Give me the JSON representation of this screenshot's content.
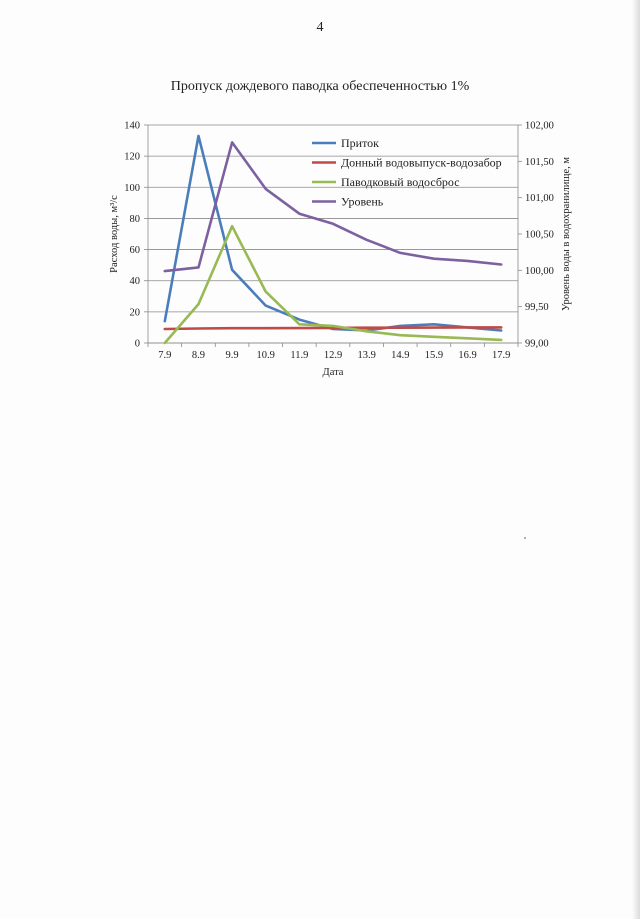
{
  "page": {
    "number": "4"
  },
  "chart_data": {
    "type": "line",
    "title": "Пропуск дождевого паводка обеспеченностью 1%",
    "xlabel": "Дата",
    "ylabel": "Расход воды, м³/с",
    "ylabel_right": "Уровень воды в водохранилище, м",
    "categories": [
      "7.9",
      "8.9",
      "9.9",
      "10.9",
      "11.9",
      "12.9",
      "13.9",
      "14.9",
      "15.9",
      "16.9",
      "17.9"
    ],
    "ylim": [
      0,
      140
    ],
    "y_ticks": [
      "0",
      "20",
      "40",
      "60",
      "80",
      "100",
      "120",
      "140"
    ],
    "ylim_right": [
      99.0,
      102.0
    ],
    "y_ticks_right": [
      "99,00",
      "99,50",
      "100,00",
      "100,50",
      "101,00",
      "101,50",
      "102,00"
    ],
    "grid": true,
    "legend_position": "top-center",
    "series": [
      {
        "name": "Приток",
        "axis": "left",
        "color": "#4a7ebb",
        "values": [
          14,
          133,
          47,
          24,
          15,
          9,
          8,
          11,
          12,
          10,
          8
        ]
      },
      {
        "name": "Донный водовыпуск-водозабор",
        "axis": "left",
        "color": "#be4b48",
        "values": [
          9,
          9.3,
          9.5,
          9.5,
          9.6,
          9.7,
          9.8,
          9.8,
          9.9,
          10,
          10
        ]
      },
      {
        "name": "Паводковый водосброс",
        "axis": "left",
        "color": "#98b954",
        "values": [
          0,
          25,
          75,
          33,
          12,
          11,
          7.5,
          5,
          4,
          3,
          2
        ]
      },
      {
        "name": "Уровень",
        "axis": "right",
        "color": "#7d60a0",
        "values": [
          99.99,
          100.04,
          101.76,
          101.12,
          100.78,
          100.64,
          100.42,
          100.24,
          100.16,
          100.13,
          100.08
        ]
      }
    ]
  }
}
